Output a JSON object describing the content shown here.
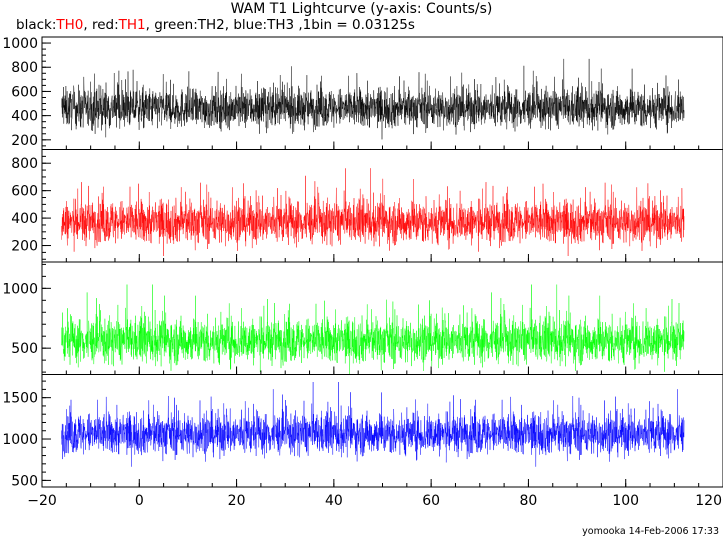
{
  "title": "WAM T1 Lightcurve (y-axis: Counts/s)",
  "subtitle_parts": [
    {
      "text": "black:",
      "color": "#000000"
    },
    {
      "text": "TH0",
      "color": "#ff0000"
    },
    {
      "text": ", red:",
      "color": "#000000"
    },
    {
      "text": "TH1",
      "color": "#ff0000"
    },
    {
      "text": ", green:TH2, blue:TH3 ,1bin = 0.03125s",
      "color": "#000000"
    }
  ],
  "footer": "yomooka 14-Feb-2006 17:33",
  "chart_data": {
    "type": "line",
    "x_axis": {
      "range": [
        -20,
        120
      ],
      "ticks": [
        -20,
        0,
        20,
        40,
        60,
        80,
        100,
        120
      ],
      "minor_step": 5
    },
    "x_extent": [
      -16,
      112
    ],
    "series": [
      {
        "name": "TH0",
        "color": "#000000",
        "mean": 460,
        "noise": 130,
        "ylim": [
          120,
          1050
        ],
        "yticks": [
          200,
          400,
          600,
          800,
          1000
        ],
        "minor_step": 50
      },
      {
        "name": "TH1",
        "color": "#ff0000",
        "mean": 370,
        "noise": 125,
        "ylim": [
          80,
          900
        ],
        "yticks": [
          200,
          400,
          600,
          800
        ],
        "minor_step": 50
      },
      {
        "name": "TH2",
        "color": "#00ff00",
        "mean": 560,
        "noise": 150,
        "ylim": [
          280,
          1220
        ],
        "yticks": [
          500,
          1000
        ],
        "minor_step": 100
      },
      {
        "name": "TH3",
        "color": "#0000ff",
        "mean": 1060,
        "noise": 200,
        "ylim": [
          420,
          1780
        ],
        "yticks": [
          500,
          1000,
          1500
        ],
        "minor_step": 100
      }
    ]
  }
}
